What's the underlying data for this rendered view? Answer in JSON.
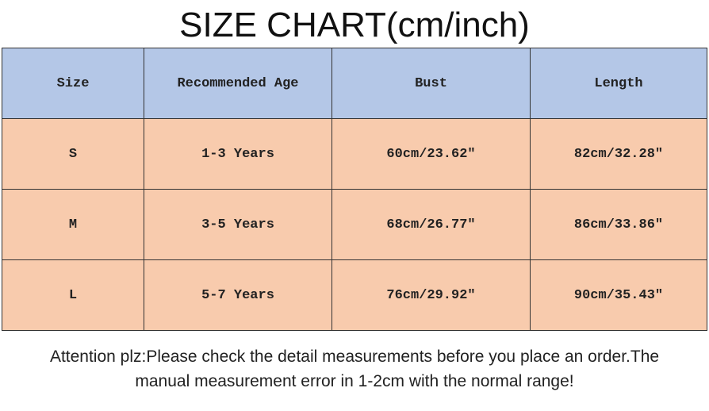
{
  "header": {
    "title": "SIZE CHART(cm/inch)"
  },
  "table": {
    "columns": [
      "Size",
      "Recommended Age",
      "Bust",
      "Length"
    ],
    "rows": [
      [
        "S",
        "1-3 Years",
        "60cm/23.62″",
        "82cm/32.28″"
      ],
      [
        "M",
        "3-5 Years",
        "68cm/26.77″",
        "86cm/33.86″"
      ],
      [
        "L",
        "5-7 Years",
        "76cm/29.92″",
        "90cm/35.43″"
      ]
    ]
  },
  "note": {
    "lines": [
      "Attention plz:Please check the detail measurements before you place an order.The",
      "manual measurement error in 1-2cm with the normal range!"
    ]
  }
}
